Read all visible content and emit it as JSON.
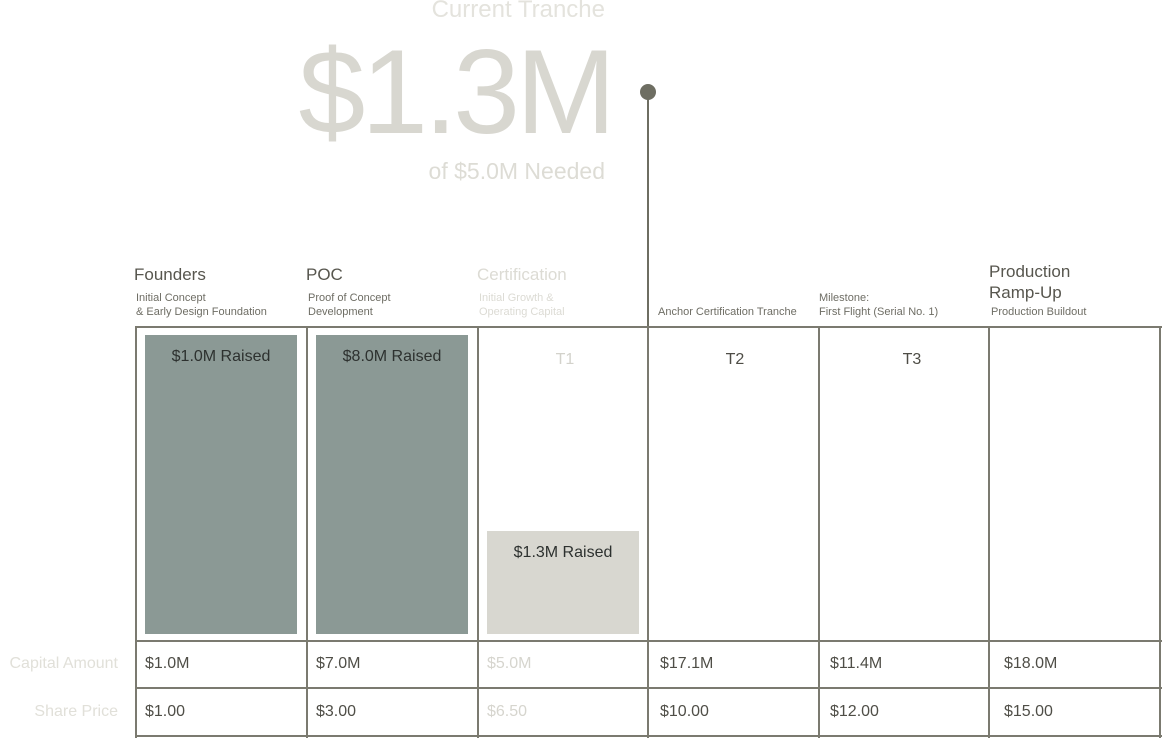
{
  "hero": {
    "label": "Current Tranche",
    "amount": "$1.3M",
    "needed": "of  $5.0M Needed"
  },
  "columns": [
    {
      "title": "Founders",
      "subtitle": "Initial Concept\n& Early Design Foundation",
      "tier": "",
      "raised_label": "$1.0M Raised",
      "capital": "$1.0M",
      "share_price": "$1.00",
      "status": "complete"
    },
    {
      "title": "POC",
      "subtitle": "Proof of Concept\nDevelopment",
      "tier": "",
      "raised_label": "$8.0M Raised",
      "capital": "$7.0M",
      "share_price": "$3.00",
      "status": "complete"
    },
    {
      "title": "Certification",
      "subtitle": "Initial Growth &\nOperating Capital",
      "tier": "T1",
      "raised_label": "$1.3M Raised",
      "capital": "$5.0M",
      "share_price": "$6.50",
      "status": "current"
    },
    {
      "title": "",
      "subtitle": "Anchor Certification Tranche",
      "tier": "T2",
      "raised_label": "",
      "capital": "$17.1M",
      "share_price": "$10.00",
      "status": "upcoming"
    },
    {
      "title": "",
      "subtitle": "Milestone:\nFirst Flight (Serial No. 1)",
      "tier": "T3",
      "raised_label": "",
      "capital": "$11.4M",
      "share_price": "$12.00",
      "status": "upcoming"
    },
    {
      "title": "Production\nRamp-Up",
      "subtitle": "Production Buildout",
      "tier": "",
      "raised_label": "",
      "capital": "$18.0M",
      "share_price": "$15.00",
      "status": "upcoming"
    }
  ],
  "rows": {
    "capital_label": "Capital Amount",
    "share_price_label": "Share Price"
  },
  "colors": {
    "raised_fill": "#8b9995",
    "current_fill": "#d8d7d0",
    "grid": "#7b7a70",
    "marker": "#6e6e62"
  }
}
